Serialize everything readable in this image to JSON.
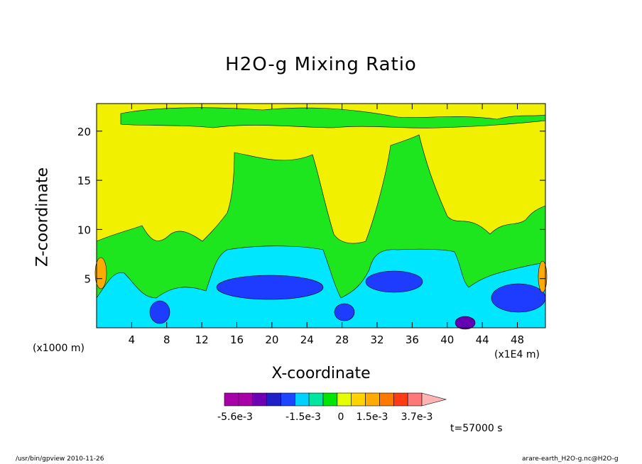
{
  "chart_data": {
    "type": "heatmap",
    "title": "H2O-g Mixing Ratio",
    "xlabel": "X-coordinate",
    "ylabel": "Z-coordinate",
    "x_unit_label": "(x1000 m)",
    "x_unit_label2": "(x1E4 m)",
    "x_ticks": [
      "4",
      "8",
      "12",
      "16",
      "20",
      "24",
      "28",
      "32",
      "36",
      "40",
      "44",
      "48"
    ],
    "x_tick_values": [
      4,
      8,
      12,
      16,
      20,
      24,
      28,
      32,
      36,
      40,
      44,
      48
    ],
    "y_ticks": [
      "5",
      "10",
      "15",
      "20"
    ],
    "y_tick_values": [
      5,
      10,
      15,
      20
    ],
    "xlim": [
      0,
      51.2
    ],
    "ylim": [
      0,
      22.8
    ],
    "colorbar": {
      "colors": [
        "#a800a8",
        "#a800a8",
        "#6e00b4",
        "#2020c8",
        "#1e46ff",
        "#00d2ff",
        "#00e6a0",
        "#00e600",
        "#e6ff00",
        "#ffd200",
        "#ffaa00",
        "#ff7800",
        "#ff3c14",
        "#ff7878",
        "#ffb4b4"
      ],
      "labels": [
        "-5.6e-3",
        "-1.5e-3",
        "0",
        "1.5e-3",
        "3.7e-3"
      ]
    },
    "time_label": "t=57000 s",
    "footer_left": "/usr/bin/gpview   2010-11-26",
    "footer_right": "arare-earth_H2O-g.nc@H2O-g"
  }
}
